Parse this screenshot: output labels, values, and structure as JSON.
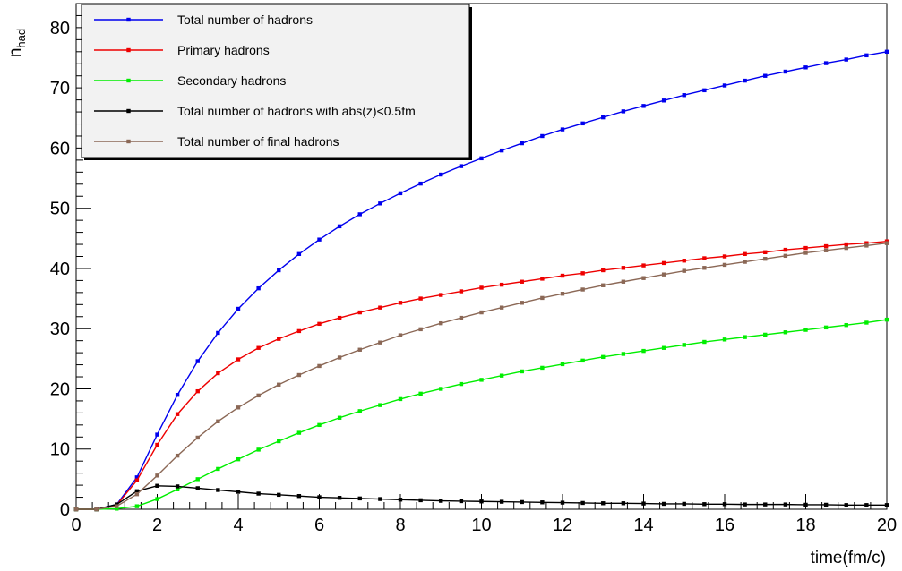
{
  "chart_data": {
    "type": "line",
    "title": "",
    "xlabel": "time(fm/c)",
    "ylabel_main": "n",
    "ylabel_sub": "had",
    "xlim": [
      0,
      20
    ],
    "ylim": [
      0,
      84
    ],
    "x_ticks": [
      0,
      2,
      4,
      6,
      8,
      10,
      12,
      14,
      16,
      18,
      20
    ],
    "y_ticks": [
      0,
      10,
      20,
      30,
      40,
      50,
      60,
      70,
      80
    ],
    "legend_position": "top-left",
    "grid": false,
    "x": [
      0,
      0.5,
      1,
      1.5,
      2,
      2.5,
      3,
      3.5,
      4,
      4.5,
      5,
      5.5,
      6,
      6.5,
      7,
      7.5,
      8,
      8.5,
      9,
      9.5,
      10,
      10.5,
      11,
      11.5,
      12,
      12.5,
      13,
      13.5,
      14,
      14.5,
      15,
      15.5,
      16,
      16.5,
      17,
      17.5,
      18,
      18.5,
      19,
      19.5,
      20
    ],
    "series": [
      {
        "name": "Total number of hadrons",
        "color": "#0000ee",
        "values": [
          0,
          0,
          0.8,
          5.3,
          12.4,
          19.0,
          24.6,
          29.3,
          33.3,
          36.7,
          39.7,
          42.4,
          44.8,
          47.0,
          49.0,
          50.8,
          52.5,
          54.1,
          55.6,
          57.0,
          58.3,
          59.6,
          60.8,
          62.0,
          63.1,
          64.1,
          65.1,
          66.1,
          67.0,
          67.9,
          68.8,
          69.6,
          70.4,
          71.2,
          72.0,
          72.7,
          73.4,
          74.1,
          74.7,
          75.4,
          76.0
        ]
      },
      {
        "name": "Primary hadrons",
        "color": "#ee0000",
        "values": [
          0,
          0,
          0.7,
          4.8,
          10.7,
          15.8,
          19.6,
          22.6,
          24.9,
          26.8,
          28.3,
          29.6,
          30.8,
          31.8,
          32.7,
          33.5,
          34.3,
          35.0,
          35.6,
          36.2,
          36.8,
          37.3,
          37.8,
          38.3,
          38.8,
          39.2,
          39.7,
          40.1,
          40.5,
          40.9,
          41.3,
          41.7,
          42.0,
          42.4,
          42.7,
          43.1,
          43.4,
          43.7,
          44.0,
          44.2,
          44.5
        ]
      },
      {
        "name": "Secondary hadrons",
        "color": "#00ee00",
        "values": [
          0,
          0,
          0.1,
          0.5,
          1.7,
          3.3,
          5.0,
          6.7,
          8.3,
          9.9,
          11.3,
          12.7,
          14.0,
          15.2,
          16.3,
          17.3,
          18.3,
          19.2,
          20.0,
          20.8,
          21.5,
          22.2,
          22.9,
          23.5,
          24.1,
          24.7,
          25.3,
          25.8,
          26.3,
          26.8,
          27.3,
          27.8,
          28.2,
          28.6,
          29.0,
          29.4,
          29.8,
          30.2,
          30.6,
          31.0,
          31.5
        ]
      },
      {
        "name": "Total number of hadrons with abs(z)<0.5fm",
        "color": "#000000",
        "values": [
          0,
          0,
          0.8,
          3.0,
          3.9,
          3.8,
          3.5,
          3.2,
          2.9,
          2.6,
          2.4,
          2.2,
          2.0,
          1.9,
          1.8,
          1.7,
          1.6,
          1.5,
          1.4,
          1.35,
          1.3,
          1.25,
          1.2,
          1.15,
          1.1,
          1.05,
          1.0,
          1.0,
          0.95,
          0.9,
          0.9,
          0.85,
          0.85,
          0.8,
          0.8,
          0.8,
          0.75,
          0.75,
          0.7,
          0.7,
          0.7
        ]
      },
      {
        "name": "Total number of final hadrons",
        "color": "#8b6856",
        "values": [
          0,
          0,
          0.5,
          2.5,
          5.6,
          8.9,
          11.9,
          14.6,
          16.9,
          18.9,
          20.7,
          22.3,
          23.8,
          25.2,
          26.5,
          27.7,
          28.9,
          29.9,
          30.9,
          31.8,
          32.7,
          33.5,
          34.3,
          35.1,
          35.8,
          36.5,
          37.2,
          37.8,
          38.4,
          39.0,
          39.6,
          40.1,
          40.6,
          41.1,
          41.6,
          42.1,
          42.6,
          43.0,
          43.4,
          43.8,
          44.2
        ]
      }
    ]
  }
}
